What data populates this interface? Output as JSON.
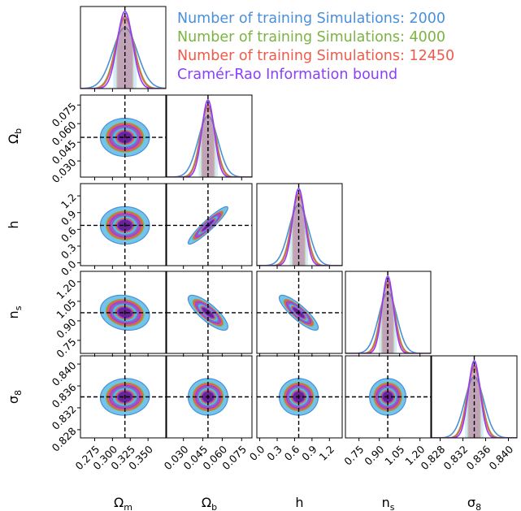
{
  "chart_data": {
    "type": "corner",
    "parameters": [
      {
        "key": "Om",
        "label": "Ω",
        "sub": "m",
        "fiducial": 0.3175,
        "range": [
          0.255,
          0.375
        ],
        "ticks": [
          "0.275",
          "0.300",
          "0.325",
          "0.350"
        ],
        "tick_values": [
          0.275,
          0.3,
          0.325,
          0.35
        ],
        "sigma_cr": 0.0108
      },
      {
        "key": "Ob",
        "label": "Ω",
        "sub": "b",
        "fiducial": 0.049,
        "range": [
          0.017,
          0.083
        ],
        "ticks": [
          "0.030",
          "0.045",
          "0.060",
          "0.075"
        ],
        "tick_values": [
          0.03,
          0.045,
          0.06,
          0.075
        ],
        "sigma_cr": 0.0048
      },
      {
        "key": "h",
        "label": "h",
        "sub": "",
        "fiducial": 0.6711,
        "range": [
          -0.05,
          1.42
        ],
        "ticks": [
          "0.0",
          "0.3",
          "0.6",
          "0.9",
          "1.2"
        ],
        "tick_values": [
          0.0,
          0.3,
          0.6,
          0.9,
          1.2
        ],
        "sigma_cr": 0.105
      },
      {
        "key": "ns",
        "label": "n",
        "sub": "s",
        "fiducial": 0.9624,
        "range": [
          0.65,
          1.28
        ],
        "ticks": [
          "0.75",
          "0.90",
          "1.05",
          "1.20"
        ],
        "tick_values": [
          0.75,
          0.9,
          1.05,
          1.2
        ],
        "sigma_cr": 0.042
      },
      {
        "key": "s8",
        "label": "σ",
        "sub": "8",
        "fiducial": 0.834,
        "range": [
          0.8265,
          0.8415
        ],
        "ticks": [
          "0.828",
          "0.832",
          "0.836",
          "0.840"
        ],
        "tick_values": [
          0.828,
          0.832,
          0.836,
          0.84
        ],
        "sigma_cr": 0.00105
      }
    ],
    "series": [
      {
        "name": "Number of training Simulations: 2000",
        "color": "#4a90d9",
        "fill": "#5bb8e8",
        "sigma_scale": 1.6
      },
      {
        "name": "Number of training Simulations: 4000",
        "color": "#7cb342",
        "fill": "#8bc34a",
        "sigma_scale": 1.22
      },
      {
        "name": "Number of training Simulations: 12450",
        "color": "#ef5b4b",
        "fill": "#e8564a",
        "sigma_scale": 1.15
      },
      {
        "name": "Cramér-Rao Information bound",
        "color": "#8a3ffc",
        "fill": "#9b4fd6",
        "sigma_scale": 1.0
      }
    ],
    "correlations": [
      {
        "pair": [
          "Ob",
          "Om"
        ],
        "rho": 0.0
      },
      {
        "pair": [
          "h",
          "Om"
        ],
        "rho": 0.0
      },
      {
        "pair": [
          "h",
          "Ob"
        ],
        "rho": 0.93
      },
      {
        "pair": [
          "ns",
          "Om"
        ],
        "rho": -0.15
      },
      {
        "pair": [
          "ns",
          "Ob"
        ],
        "rho": -0.8
      },
      {
        "pair": [
          "ns",
          "h"
        ],
        "rho": -0.85
      },
      {
        "pair": [
          "s8",
          "Om"
        ],
        "rho": 0.05
      },
      {
        "pair": [
          "s8",
          "Ob"
        ],
        "rho": 0.0
      },
      {
        "pair": [
          "s8",
          "h"
        ],
        "rho": 0.0
      },
      {
        "pair": [
          "s8",
          "ns"
        ],
        "rho": 0.0
      }
    ],
    "fiducial_lines": "dashed black",
    "legend_placement": "top-right"
  }
}
